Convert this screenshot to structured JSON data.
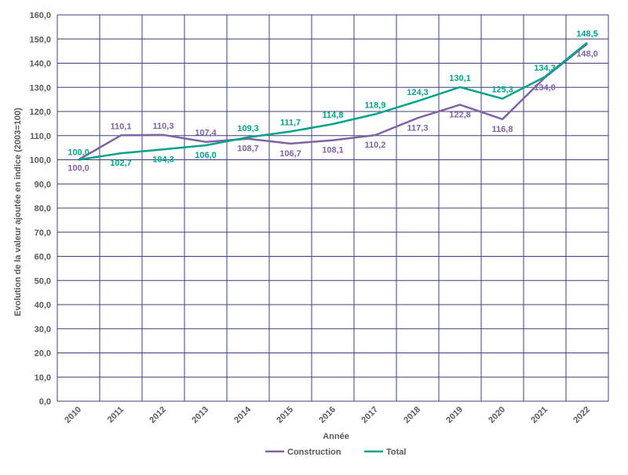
{
  "chart_data": {
    "type": "line",
    "xlabel": "Année",
    "ylabel": "Evolution de la valeur ajoutée en indice (2003=100)",
    "x": [
      "2010",
      "2011",
      "2012",
      "2013",
      "2014",
      "2015",
      "2016",
      "2017",
      "2018",
      "2019",
      "2020",
      "2021",
      "2022"
    ],
    "ylim": [
      0,
      160
    ],
    "yticks": [
      "0,0",
      "10,0",
      "20,0",
      "30,0",
      "40,0",
      "50,0",
      "60,0",
      "70,0",
      "80,0",
      "90,0",
      "100,0",
      "110,0",
      "120,0",
      "130,0",
      "140,0",
      "150,0",
      "160,0"
    ],
    "grid": true,
    "legend_position": "bottom",
    "series": [
      {
        "name": "Construction",
        "color": "#8064A2",
        "values": [
          100.0,
          110.1,
          110.3,
          107.4,
          108.7,
          106.7,
          108.1,
          110.2,
          117.3,
          122.8,
          116.8,
          134.0,
          148.0
        ],
        "labels": [
          "100,0",
          "110,1",
          "110,3",
          "107,4",
          "108,7",
          "106,7",
          "108,1",
          "110,2",
          "117,3",
          "122,8",
          "116,8",
          "134,0",
          "148,0"
        ]
      },
      {
        "name": "Total",
        "color": "#00A28A",
        "values": [
          100.0,
          102.7,
          104.3,
          106.0,
          109.3,
          111.7,
          114.8,
          118.9,
          124.3,
          130.1,
          125.3,
          134.3,
          148.5
        ],
        "labels": [
          "100,0",
          "102,7",
          "104,3",
          "106,0",
          "109,3",
          "111,7",
          "114,8",
          "118,9",
          "124,3",
          "130,1",
          "125,3",
          "134,3",
          "148,5"
        ]
      }
    ]
  }
}
